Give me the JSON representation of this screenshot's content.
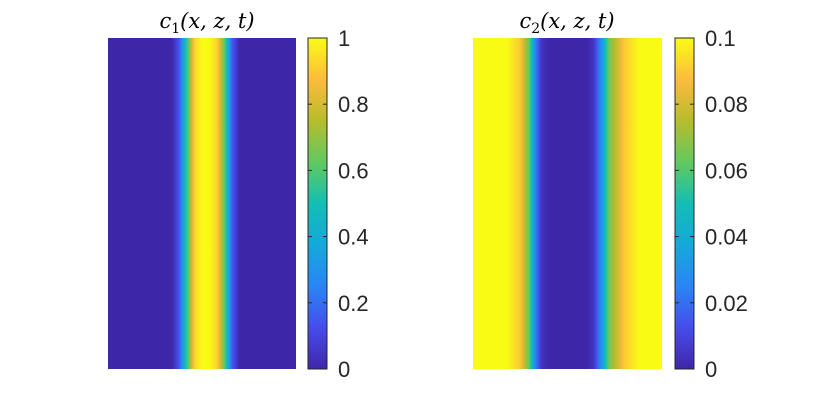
{
  "chart_data": [
    {
      "type": "heatmap",
      "title_var": "c",
      "title_sub": "1",
      "title_args": "(x, z, t)",
      "colorbar": {
        "ticks": [
          0,
          0.2,
          0.4,
          0.6,
          0.8,
          1
        ],
        "tick_labels": [
          "0",
          "0.2",
          "0.4",
          "0.6",
          "0.8",
          "1"
        ],
        "range": [
          0,
          1
        ]
      },
      "profile": {
        "x": [
          0,
          0.34,
          0.38,
          0.42,
          0.46,
          0.5,
          0.54,
          0.58,
          0.62,
          0.66,
          0.7,
          1
        ],
        "value": [
          0.0,
          0.0,
          0.15,
          0.55,
          0.92,
          1.0,
          1.0,
          0.92,
          0.62,
          0.15,
          0.0,
          0.0
        ]
      }
    },
    {
      "type": "heatmap",
      "title_var": "c",
      "title_sub": "2",
      "title_args": "(x, z, t)",
      "colorbar": {
        "ticks": [
          0,
          0.02,
          0.04,
          0.06,
          0.08,
          0.1
        ],
        "tick_labels": [
          "0",
          "0.02",
          "0.04",
          "0.06",
          "0.08",
          "0.1"
        ],
        "range": [
          0,
          0.1
        ]
      },
      "profile": {
        "x": [
          0,
          0.18,
          0.25,
          0.3,
          0.33,
          0.36,
          0.4,
          0.6,
          0.64,
          0.68,
          0.72,
          0.8,
          0.88,
          1
        ],
        "value": [
          0.1,
          0.1,
          0.09,
          0.06,
          0.025,
          0.005,
          0.0,
          0.0,
          0.005,
          0.03,
          0.065,
          0.09,
          0.1,
          0.1
        ]
      }
    }
  ]
}
